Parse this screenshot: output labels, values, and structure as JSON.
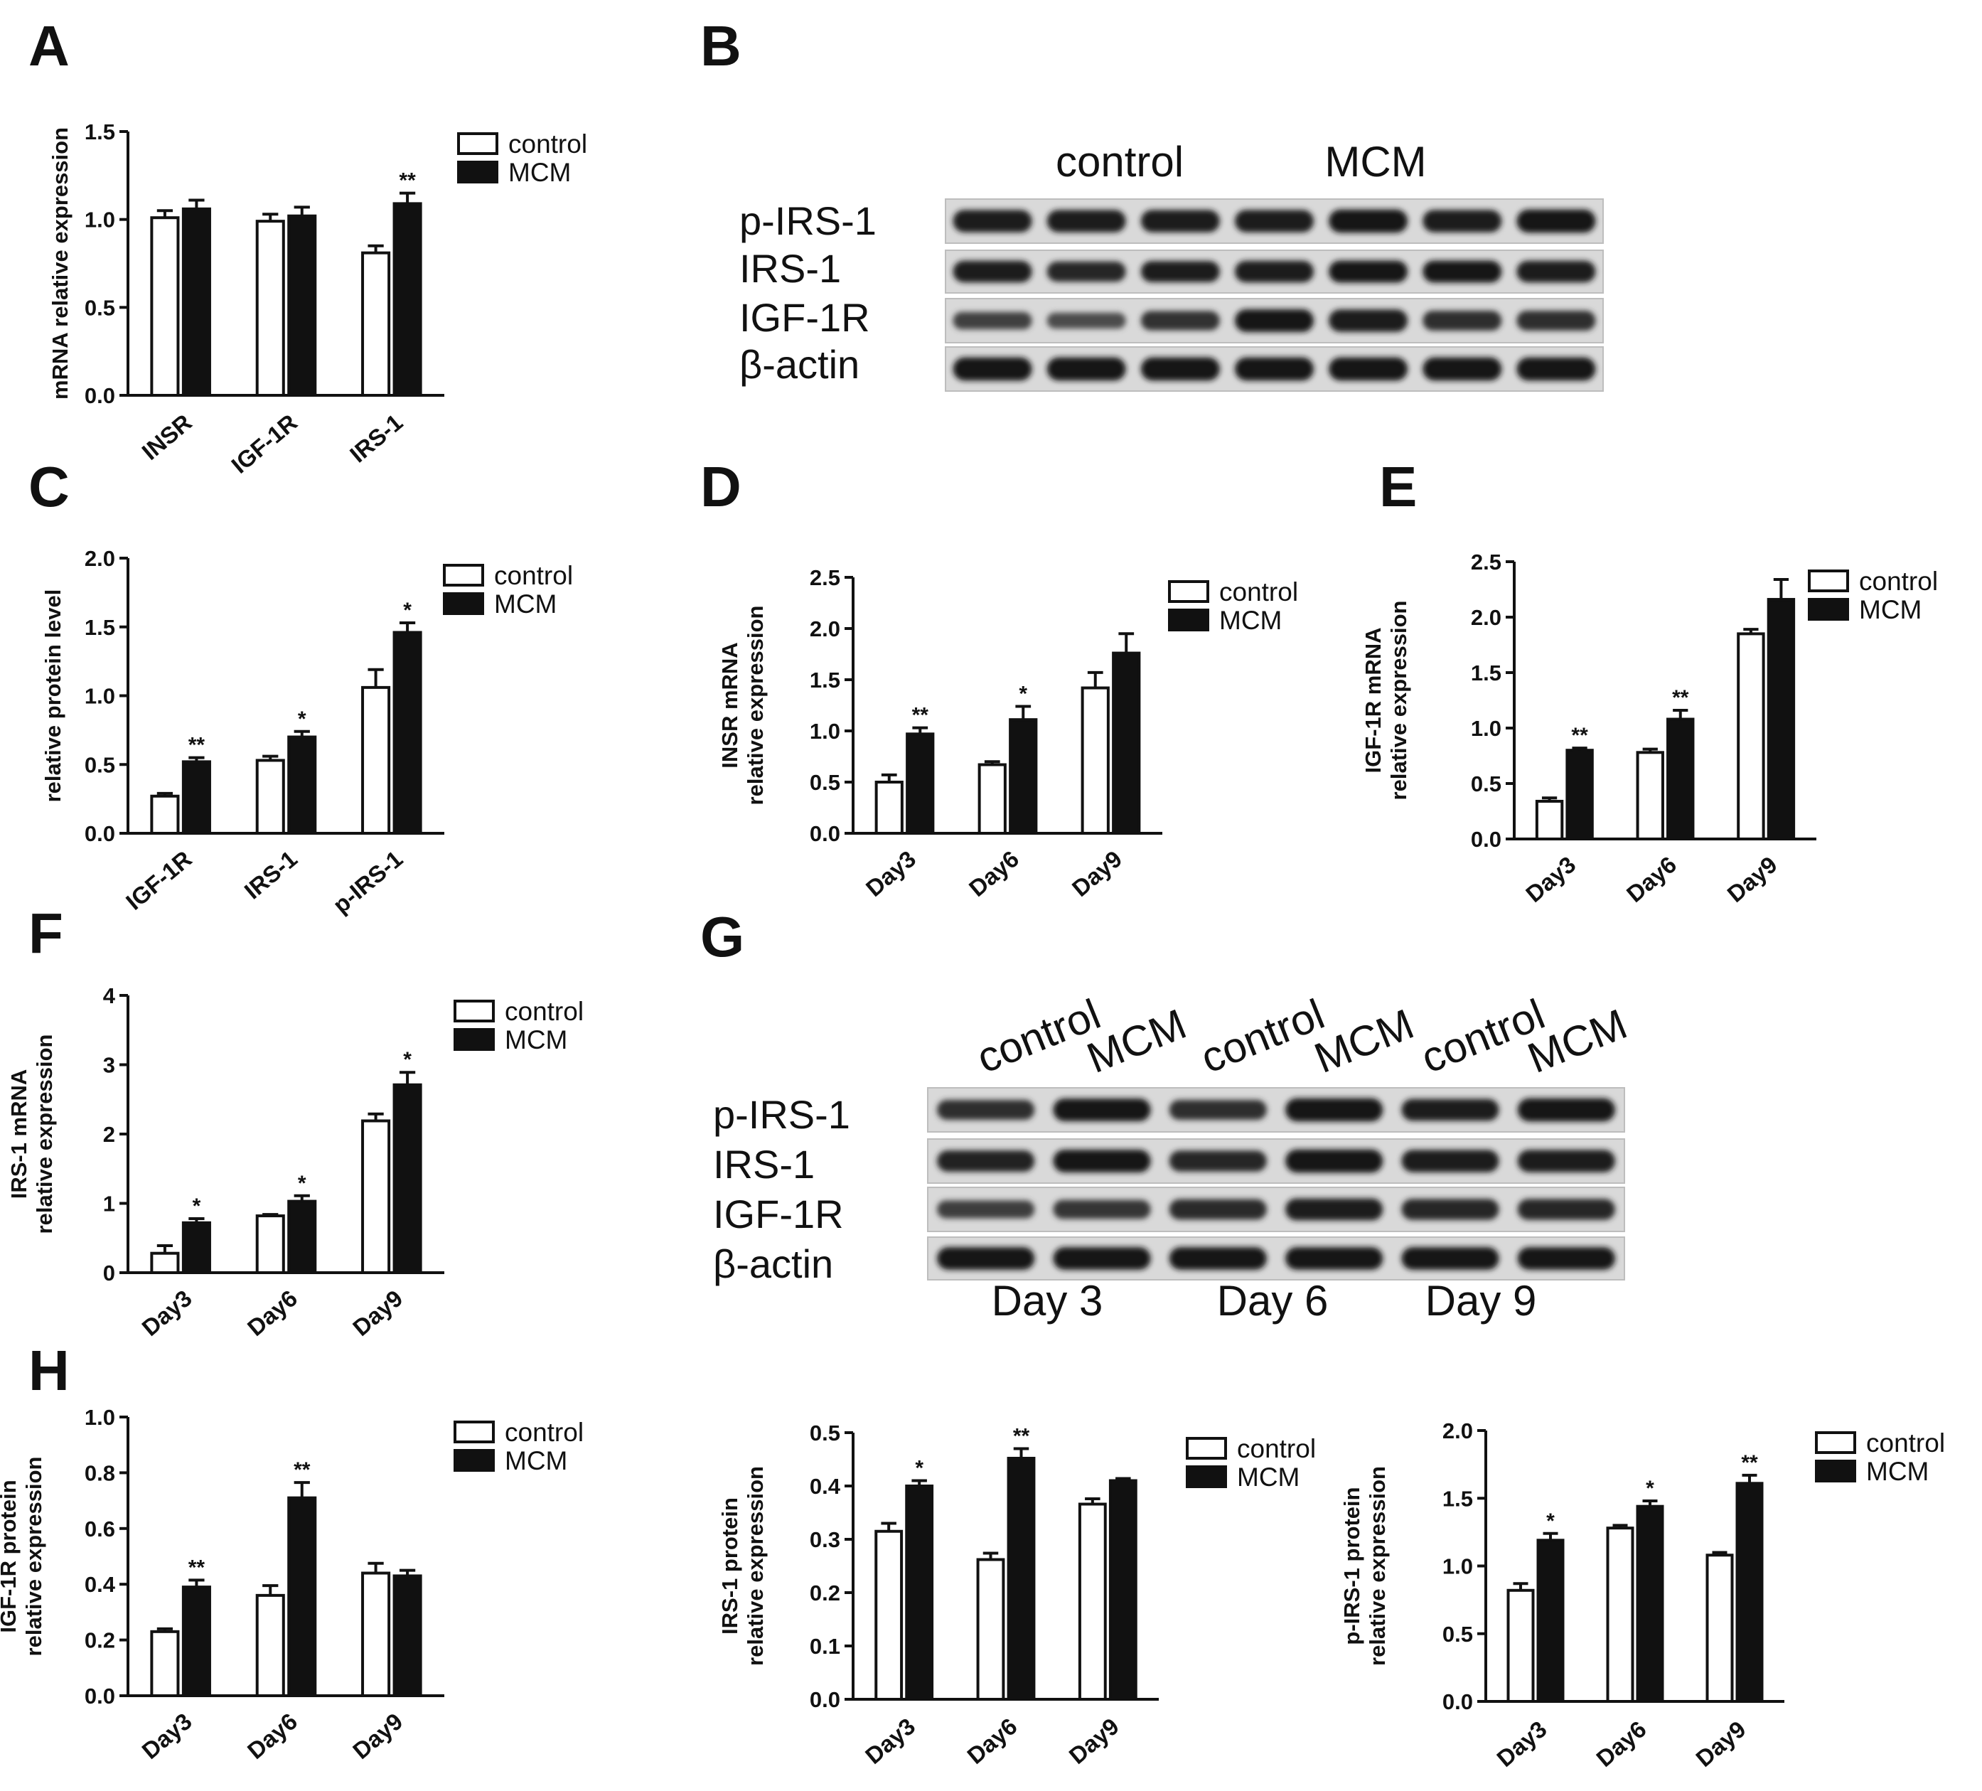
{
  "colors": {
    "control": "#ffffff",
    "mcm": "#111111",
    "axis": "#111111"
  },
  "chart_data": [
    {
      "panel": "A",
      "type": "bar",
      "categories": [
        "INSR",
        "IGF-1R",
        "IRS-1"
      ],
      "ylabel": [
        "mRNA relative expression"
      ],
      "ylim": [
        0,
        1.5
      ],
      "yticks": [
        "0.0",
        "0.5",
        "1.0",
        "1.5"
      ],
      "legend": [
        "control",
        "MCM"
      ],
      "series": [
        {
          "name": "control",
          "values": [
            1.01,
            0.99,
            0.81
          ],
          "err": [
            0.04,
            0.04,
            0.04
          ]
        },
        {
          "name": "MCM",
          "values": [
            1.06,
            1.02,
            1.09
          ],
          "err": [
            0.05,
            0.05,
            0.06
          ],
          "sig": [
            "",
            "",
            "**"
          ]
        }
      ]
    },
    {
      "panel": "C",
      "type": "bar",
      "categories": [
        "IGF-1R",
        "IRS-1",
        "p-IRS-1"
      ],
      "ylabel": [
        "relative protein level"
      ],
      "ylim": [
        0,
        2.0
      ],
      "yticks": [
        "0.0",
        "0.5",
        "1.0",
        "1.5",
        "2.0"
      ],
      "legend": [
        "control",
        "MCM"
      ],
      "series": [
        {
          "name": "control",
          "values": [
            0.27,
            0.53,
            1.06
          ],
          "err": [
            0.02,
            0.03,
            0.13
          ]
        },
        {
          "name": "MCM",
          "values": [
            0.52,
            0.7,
            1.46
          ],
          "err": [
            0.03,
            0.04,
            0.07
          ],
          "sig": [
            "**",
            "*",
            "*"
          ]
        }
      ]
    },
    {
      "panel": "D",
      "type": "bar",
      "categories": [
        "Day3",
        "Day6",
        "Day9"
      ],
      "ylabel": [
        "INSR mRNA",
        "relative expression"
      ],
      "ylim": [
        0,
        2.5
      ],
      "yticks": [
        "0.0",
        "0.5",
        "1.0",
        "1.5",
        "2.0",
        "2.5"
      ],
      "legend": [
        "control",
        "MCM"
      ],
      "series": [
        {
          "name": "control",
          "values": [
            0.5,
            0.67,
            1.42
          ],
          "err": [
            0.07,
            0.03,
            0.15
          ]
        },
        {
          "name": "MCM",
          "values": [
            0.97,
            1.11,
            1.76
          ],
          "err": [
            0.06,
            0.13,
            0.19
          ],
          "sig": [
            "**",
            "*",
            ""
          ]
        }
      ]
    },
    {
      "panel": "E",
      "type": "bar",
      "categories": [
        "Day3",
        "Day6",
        "Day9"
      ],
      "ylabel": [
        "IGF-1R mRNA",
        "relative expression"
      ],
      "ylim": [
        0,
        2.5
      ],
      "yticks": [
        "0.0",
        "0.5",
        "1.0",
        "1.5",
        "2.0",
        "2.5"
      ],
      "legend": [
        "control",
        "MCM"
      ],
      "series": [
        {
          "name": "control",
          "values": [
            0.34,
            0.78,
            1.85
          ],
          "err": [
            0.03,
            0.03,
            0.04
          ]
        },
        {
          "name": "MCM",
          "values": [
            0.8,
            1.08,
            2.16
          ],
          "err": [
            0.02,
            0.08,
            0.18
          ],
          "sig": [
            "**",
            "**",
            ""
          ]
        }
      ]
    },
    {
      "panel": "F",
      "type": "bar",
      "categories": [
        "Day3",
        "Day6",
        "Day9"
      ],
      "ylabel": [
        "IRS-1 mRNA",
        "relative expression"
      ],
      "ylim": [
        0,
        4
      ],
      "yticks": [
        "0",
        "1",
        "2",
        "3",
        "4"
      ],
      "legend": [
        "control",
        "MCM"
      ],
      "series": [
        {
          "name": "control",
          "values": [
            0.28,
            0.82,
            2.19
          ],
          "err": [
            0.11,
            0.02,
            0.1
          ]
        },
        {
          "name": "MCM",
          "values": [
            0.72,
            1.03,
            2.71
          ],
          "err": [
            0.06,
            0.08,
            0.18
          ],
          "sig": [
            "*",
            "*",
            "*"
          ]
        }
      ]
    },
    {
      "panel": "H",
      "type": "bar",
      "categories": [
        "Day3",
        "Day6",
        "Day9"
      ],
      "ylabel": [
        "IGF-1R protein",
        "relative expression"
      ],
      "ylim": [
        0,
        1.0
      ],
      "yticks": [
        "0.0",
        "0.2",
        "0.4",
        "0.6",
        "0.8",
        "1.0"
      ],
      "legend": [
        "control",
        "MCM"
      ],
      "series": [
        {
          "name": "control",
          "values": [
            0.23,
            0.36,
            0.44
          ],
          "err": [
            0.01,
            0.035,
            0.035
          ]
        },
        {
          "name": "MCM",
          "values": [
            0.39,
            0.71,
            0.43
          ],
          "err": [
            0.025,
            0.055,
            0.02
          ],
          "sig": [
            "**",
            "**",
            ""
          ]
        }
      ]
    },
    {
      "panel": "",
      "type": "bar",
      "categories": [
        "Day3",
        "Day6",
        "Day9"
      ],
      "ylabel": [
        "IRS-1 protein",
        "relative expression"
      ],
      "ylim": [
        0,
        0.5
      ],
      "yticks": [
        "0.0",
        "0.1",
        "0.2",
        "0.3",
        "0.4",
        "0.5"
      ],
      "legend": [
        "control",
        "MCM"
      ],
      "series": [
        {
          "name": "control",
          "values": [
            0.315,
            0.262,
            0.366
          ],
          "err": [
            0.015,
            0.012,
            0.01
          ]
        },
        {
          "name": "MCM",
          "values": [
            0.4,
            0.452,
            0.41
          ],
          "err": [
            0.01,
            0.018,
            0.004
          ],
          "sig": [
            "*",
            "**",
            ""
          ]
        }
      ]
    },
    {
      "panel": "",
      "type": "bar",
      "categories": [
        "Day3",
        "Day6",
        "Day9"
      ],
      "ylabel": [
        "p-IRS-1 protein",
        "relative expression"
      ],
      "ylim": [
        0,
        2.0
      ],
      "yticks": [
        "0.0",
        "0.5",
        "1.0",
        "1.5",
        "2.0"
      ],
      "legend": [
        "control",
        "MCM"
      ],
      "series": [
        {
          "name": "control",
          "values": [
            0.82,
            1.28,
            1.08
          ],
          "err": [
            0.05,
            0.02,
            0.02
          ]
        },
        {
          "name": "MCM",
          "values": [
            1.19,
            1.44,
            1.61
          ],
          "err": [
            0.05,
            0.04,
            0.06
          ],
          "sig": [
            "*",
            "*",
            "**"
          ]
        }
      ]
    }
  ],
  "blots": {
    "B": {
      "letter": "B",
      "groups": [
        "control",
        "MCM"
      ],
      "rows": [
        "p-IRS-1",
        "IRS-1",
        "IGF-1R",
        "β-actin"
      ]
    },
    "G": {
      "letter": "G",
      "lanes": [
        "control",
        "MCM",
        "control",
        "MCM",
        "control",
        "MCM"
      ],
      "rows": [
        "p-IRS-1",
        "IRS-1",
        "IGF-1R",
        "β-actin"
      ],
      "days": [
        "Day 3",
        "Day 6",
        "Day 9"
      ]
    }
  }
}
